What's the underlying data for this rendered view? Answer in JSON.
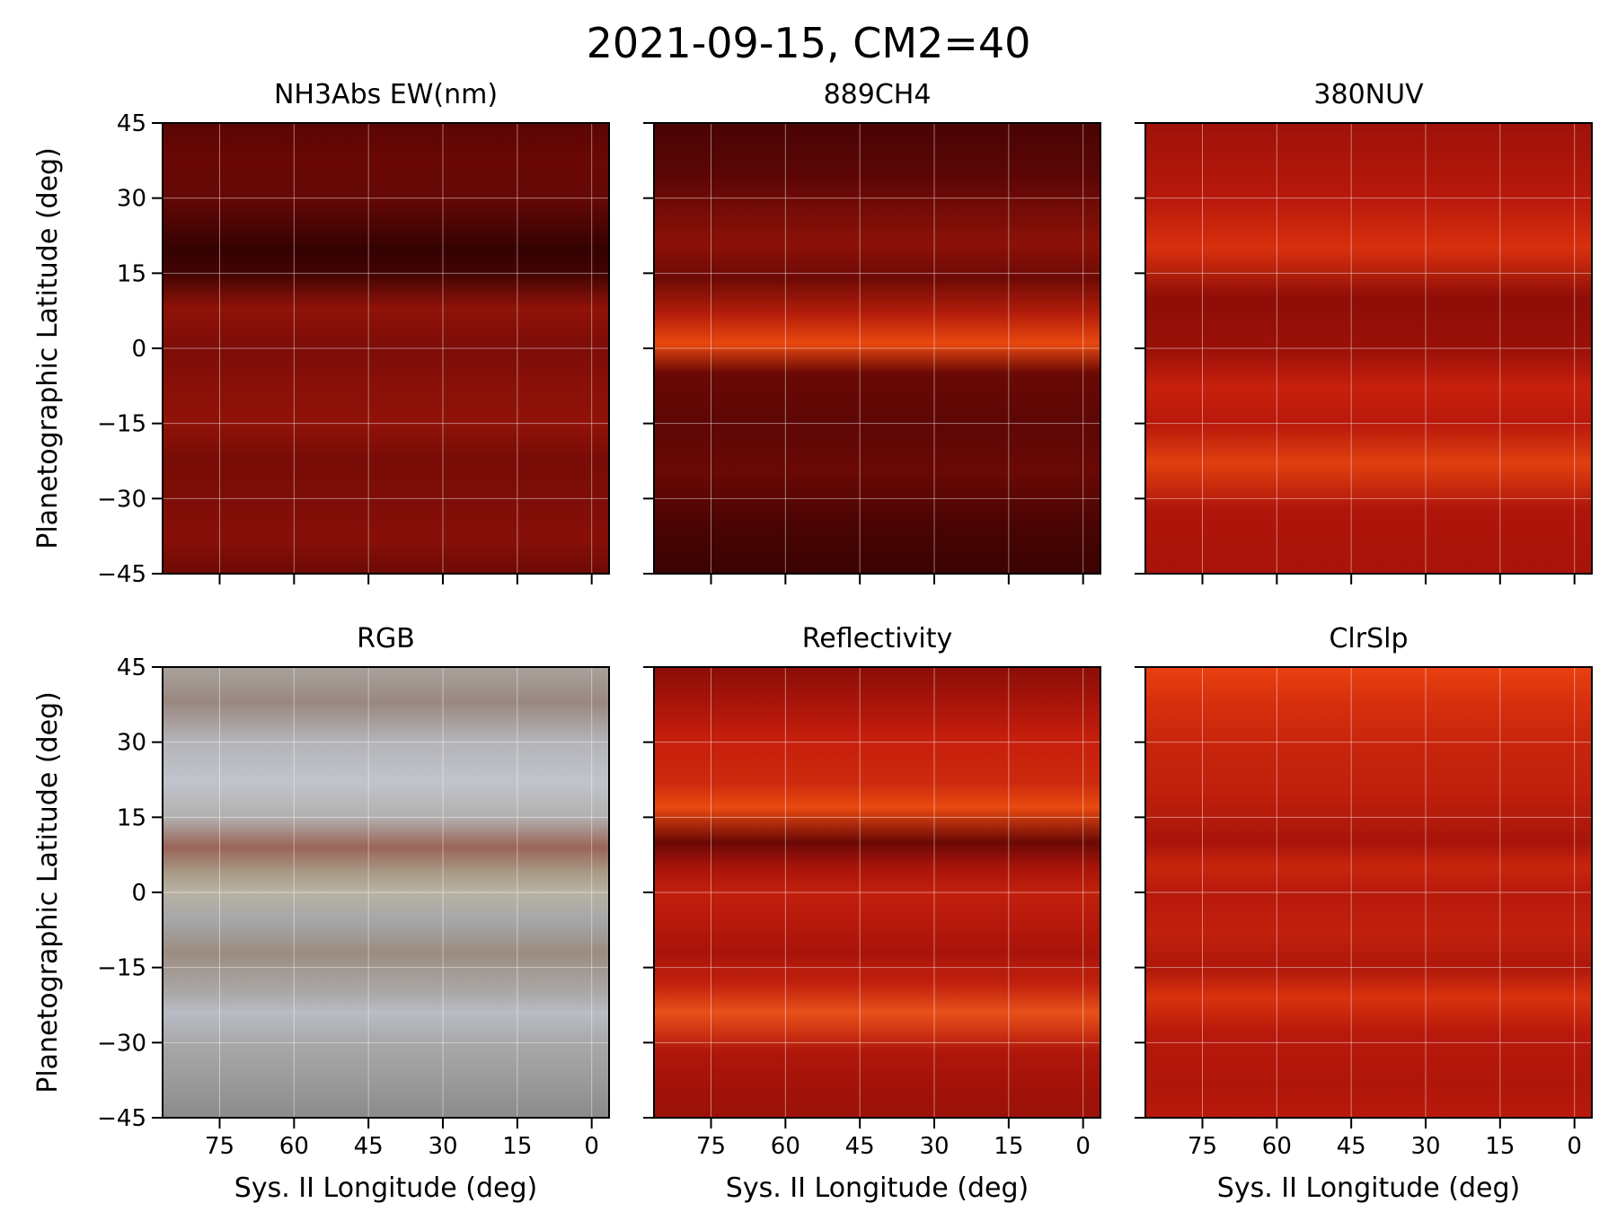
{
  "figure": {
    "suptitle": "2021-09-15, CM2=40"
  },
  "chart_data": [
    {
      "type": "heatmap",
      "title": "NH3Abs EW(nm)",
      "xlabel": "",
      "ylabel": "Planetographic Latitude (deg)",
      "xlim": [
        86.5,
        -3.5
      ],
      "ylim": [
        -45,
        45
      ],
      "xticks": [
        75,
        60,
        45,
        30,
        15,
        0
      ],
      "yticks": [
        45,
        30,
        15,
        0,
        -15,
        -30,
        -45
      ],
      "xtick_labels": false,
      "ytick_labels": true,
      "grid": true,
      "colormap": "red-black",
      "base_color": "#7a0c07",
      "bands": [
        {
          "lat": 45,
          "color": "#5a0503"
        },
        {
          "lat": 38,
          "color": "#6a0805"
        },
        {
          "lat": 30,
          "color": "#650805"
        },
        {
          "lat": 20,
          "color": "#350202"
        },
        {
          "lat": 15,
          "color": "#420403"
        },
        {
          "lat": 8,
          "color": "#901208"
        },
        {
          "lat": 0,
          "color": "#7c0d07"
        },
        {
          "lat": -8,
          "color": "#8a1008"
        },
        {
          "lat": -15,
          "color": "#901208"
        },
        {
          "lat": -22,
          "color": "#780c06"
        },
        {
          "lat": -30,
          "color": "#7e0d07"
        },
        {
          "lat": -38,
          "color": "#880f08"
        },
        {
          "lat": -45,
          "color": "#6e0a05"
        }
      ]
    },
    {
      "type": "heatmap",
      "title": "889CH4",
      "xlabel": "",
      "ylabel": "",
      "xlim": [
        86.5,
        -3.5
      ],
      "ylim": [
        -45,
        45
      ],
      "xticks": [
        75,
        60,
        45,
        30,
        15,
        0
      ],
      "yticks": [
        45,
        30,
        15,
        0,
        -15,
        -30,
        -45
      ],
      "xtick_labels": false,
      "ytick_labels": false,
      "grid": true,
      "colormap": "red-black",
      "base_color": "#5a0604",
      "bands": [
        {
          "lat": 45,
          "color": "#4a0403"
        },
        {
          "lat": 35,
          "color": "#5a0605"
        },
        {
          "lat": 21,
          "color": "#8c1108"
        },
        {
          "lat": 14,
          "color": "#6e0a05"
        },
        {
          "lat": 7,
          "color": "#b31d0a"
        },
        {
          "lat": 1,
          "color": "#e8480f"
        },
        {
          "lat": -5,
          "color": "#6a0905"
        },
        {
          "lat": -15,
          "color": "#5e0705"
        },
        {
          "lat": -25,
          "color": "#6a0905"
        },
        {
          "lat": -35,
          "color": "#4a0403"
        },
        {
          "lat": -45,
          "color": "#3a0302"
        }
      ]
    },
    {
      "type": "heatmap",
      "title": "380NUV",
      "xlabel": "",
      "ylabel": "",
      "xlim": [
        86.5,
        -3.5
      ],
      "ylim": [
        -45,
        45
      ],
      "xticks": [
        75,
        60,
        45,
        30,
        15,
        0
      ],
      "yticks": [
        45,
        30,
        15,
        0,
        -15,
        -30,
        -45
      ],
      "xtick_labels": false,
      "ytick_labels": false,
      "grid": true,
      "colormap": "red-black",
      "base_color": "#a8140a",
      "bands": [
        {
          "lat": 45,
          "color": "#9e1209"
        },
        {
          "lat": 30,
          "color": "#b8180b"
        },
        {
          "lat": 20,
          "color": "#d8300e"
        },
        {
          "lat": 10,
          "color": "#8e0e07"
        },
        {
          "lat": 0,
          "color": "#9a1008"
        },
        {
          "lat": -8,
          "color": "#c8200c"
        },
        {
          "lat": -15,
          "color": "#b8180b"
        },
        {
          "lat": -23,
          "color": "#e0400f"
        },
        {
          "lat": -32,
          "color": "#b0150a"
        },
        {
          "lat": -45,
          "color": "#a8140a"
        }
      ]
    },
    {
      "type": "heatmap",
      "title": "RGB",
      "xlabel": "Sys. II Longitude (deg)",
      "ylabel": "Planetographic Latitude (deg)",
      "xlim": [
        86.5,
        -3.5
      ],
      "ylim": [
        -45,
        45
      ],
      "xticks": [
        75,
        60,
        45,
        30,
        15,
        0
      ],
      "yticks": [
        45,
        30,
        15,
        0,
        -15,
        -30,
        -45
      ],
      "xtick_labels": true,
      "ytick_labels": true,
      "grid": true,
      "colormap": "rgb",
      "base_color": "#a09890",
      "bands": [
        {
          "lat": 45,
          "color": "#a8a29c"
        },
        {
          "lat": 38,
          "color": "#9a8880"
        },
        {
          "lat": 30,
          "color": "#b4b4b8"
        },
        {
          "lat": 22,
          "color": "#c0c4cc"
        },
        {
          "lat": 15,
          "color": "#b2b0ae"
        },
        {
          "lat": 9,
          "color": "#9a6458"
        },
        {
          "lat": 4,
          "color": "#a89a86"
        },
        {
          "lat": 0,
          "color": "#b8b2a4"
        },
        {
          "lat": -6,
          "color": "#a4a6a8"
        },
        {
          "lat": -12,
          "color": "#9c8c80"
        },
        {
          "lat": -20,
          "color": "#aaa8a8"
        },
        {
          "lat": -24,
          "color": "#b8bcc4"
        },
        {
          "lat": -30,
          "color": "#a8a8aa"
        },
        {
          "lat": -38,
          "color": "#9a9a9a"
        },
        {
          "lat": -45,
          "color": "#8a8a8a"
        }
      ]
    },
    {
      "type": "heatmap",
      "title": "Reflectivity",
      "xlabel": "Sys. II Longitude (deg)",
      "ylabel": "",
      "xlim": [
        86.5,
        -3.5
      ],
      "ylim": [
        -45,
        45
      ],
      "xticks": [
        75,
        60,
        45,
        30,
        15,
        0
      ],
      "yticks": [
        45,
        30,
        15,
        0,
        -15,
        -30,
        -45
      ],
      "xtick_labels": true,
      "ytick_labels": false,
      "grid": true,
      "colormap": "red-black",
      "base_color": "#b8180b",
      "bands": [
        {
          "lat": 45,
          "color": "#8a0e07"
        },
        {
          "lat": 38,
          "color": "#a8140a"
        },
        {
          "lat": 30,
          "color": "#c81f0c"
        },
        {
          "lat": 22,
          "color": "#cc2a0d"
        },
        {
          "lat": 17,
          "color": "#e84a10"
        },
        {
          "lat": 10,
          "color": "#6a0905"
        },
        {
          "lat": 5,
          "color": "#a8140a"
        },
        {
          "lat": 0,
          "color": "#c0200c"
        },
        {
          "lat": -6,
          "color": "#b8180b"
        },
        {
          "lat": -12,
          "color": "#a8140a"
        },
        {
          "lat": -18,
          "color": "#c0200c"
        },
        {
          "lat": -24,
          "color": "#e8501a"
        },
        {
          "lat": -32,
          "color": "#b0160a"
        },
        {
          "lat": -40,
          "color": "#a01209"
        },
        {
          "lat": -45,
          "color": "#9c1209"
        }
      ]
    },
    {
      "type": "heatmap",
      "title": "ClrSlp",
      "xlabel": "Sys. II Longitude (deg)",
      "ylabel": "",
      "xlim": [
        86.5,
        -3.5
      ],
      "ylim": [
        -45,
        45
      ],
      "xticks": [
        75,
        60,
        45,
        30,
        15,
        0
      ],
      "yticks": [
        45,
        30,
        15,
        0,
        -15,
        -30,
        -45
      ],
      "xtick_labels": true,
      "ytick_labels": false,
      "grid": true,
      "colormap": "red-black",
      "base_color": "#c0200c",
      "bands": [
        {
          "lat": 45,
          "color": "#e8400f"
        },
        {
          "lat": 38,
          "color": "#d8300e"
        },
        {
          "lat": 30,
          "color": "#c8250c"
        },
        {
          "lat": 20,
          "color": "#c0200c"
        },
        {
          "lat": 10,
          "color": "#a8140a"
        },
        {
          "lat": 5,
          "color": "#c8250c"
        },
        {
          "lat": 0,
          "color": "#b8190b"
        },
        {
          "lat": -8,
          "color": "#c0200c"
        },
        {
          "lat": -15,
          "color": "#b0170a"
        },
        {
          "lat": -21,
          "color": "#d8320e"
        },
        {
          "lat": -28,
          "color": "#b8190b"
        },
        {
          "lat": -38,
          "color": "#b0160a"
        },
        {
          "lat": -45,
          "color": "#b8190b"
        }
      ]
    }
  ]
}
